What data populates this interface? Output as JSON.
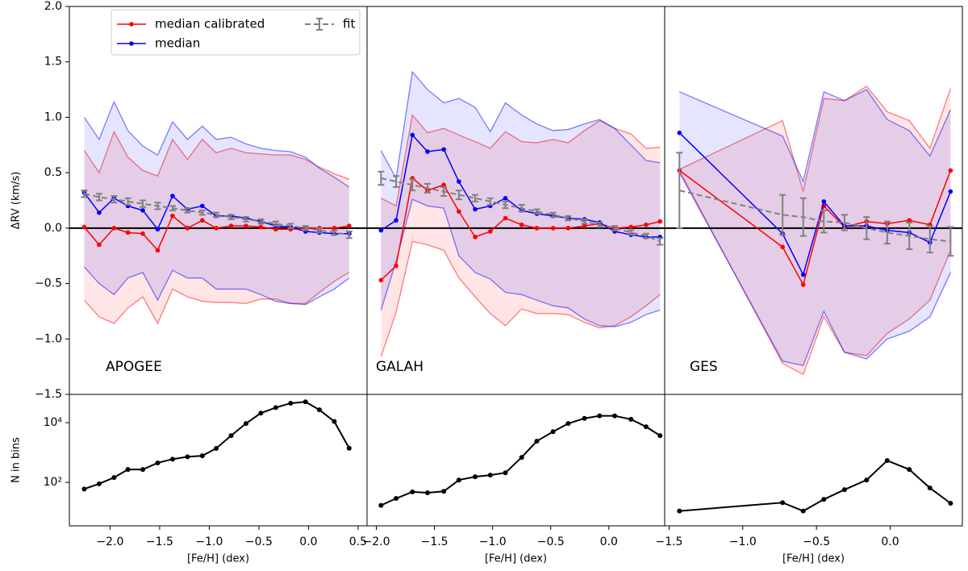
{
  "chart_data": [
    {
      "type": "line",
      "label": "APOGEE",
      "ylabel": "ΔRV (km/s)",
      "legend_loc": "upper left",
      "hline": 0,
      "xlim": [
        -2.41,
        0.59
      ],
      "xticks": [
        {
          "value": -2.0,
          "label": "−2.0"
        },
        {
          "value": -1.5,
          "label": "−1.5"
        },
        {
          "value": -1.0,
          "label": "−1.0"
        },
        {
          "value": -0.5,
          "label": "−0.5"
        },
        {
          "value": 0.0,
          "label": "0.0"
        },
        {
          "value": 0.5,
          "label": "0.5"
        }
      ],
      "ylim": [
        -1.5,
        2.0
      ],
      "yticks": [
        {
          "value": -1.5,
          "label": "−1.5"
        },
        {
          "value": -1.0,
          "label": "−1.0"
        },
        {
          "value": -0.5,
          "label": "−0.5"
        },
        {
          "value": 0.0,
          "label": "0.0"
        },
        {
          "value": 0.5,
          "label": "0.5"
        },
        {
          "value": 1.0,
          "label": "1.0"
        },
        {
          "value": 1.5,
          "label": "1.5"
        },
        {
          "value": 2.0,
          "label": "2.0"
        }
      ],
      "x": [
        -2.26,
        -2.11,
        -1.96,
        -1.82,
        -1.67,
        -1.52,
        -1.37,
        -1.22,
        -1.07,
        -0.93,
        -0.78,
        -0.63,
        -0.48,
        -0.33,
        -0.18,
        -0.03,
        0.11,
        0.26,
        0.41
      ],
      "series": [
        {
          "name": "median calibrated",
          "color": "#ff0000",
          "values": [
            0.01,
            -0.15,
            0.0,
            -0.04,
            -0.05,
            -0.2,
            0.11,
            0.0,
            0.07,
            0.0,
            0.02,
            0.02,
            0.01,
            -0.01,
            -0.01,
            0.0,
            0.0,
            0.0,
            0.02
          ],
          "band_high": [
            0.7,
            0.5,
            0.87,
            0.64,
            0.52,
            0.47,
            0.8,
            0.62,
            0.8,
            0.68,
            0.72,
            0.68,
            0.67,
            0.66,
            0.66,
            0.62,
            0.55,
            0.49,
            0.44
          ],
          "band_low": [
            -0.65,
            -0.8,
            -0.86,
            -0.72,
            -0.62,
            -0.86,
            -0.55,
            -0.62,
            -0.66,
            -0.67,
            -0.67,
            -0.68,
            -0.64,
            -0.64,
            -0.68,
            -0.68,
            -0.58,
            -0.48,
            -0.4
          ]
        },
        {
          "name": "median",
          "color": "#0000ff",
          "values": [
            0.32,
            0.14,
            0.27,
            0.2,
            0.16,
            -0.01,
            0.29,
            0.17,
            0.2,
            0.11,
            0.11,
            0.09,
            0.06,
            0.02,
            0.01,
            -0.03,
            -0.04,
            -0.05,
            -0.05
          ],
          "band_high": [
            1.0,
            0.8,
            1.14,
            0.88,
            0.74,
            0.66,
            0.96,
            0.8,
            0.92,
            0.8,
            0.82,
            0.76,
            0.72,
            0.7,
            0.69,
            0.64,
            0.54,
            0.46,
            0.37
          ],
          "band_low": [
            -0.35,
            -0.5,
            -0.6,
            -0.45,
            -0.4,
            -0.65,
            -0.38,
            -0.45,
            -0.45,
            -0.55,
            -0.55,
            -0.55,
            -0.6,
            -0.66,
            -0.68,
            -0.69,
            -0.62,
            -0.55,
            -0.45
          ]
        },
        {
          "name": "fit",
          "color": "#808080",
          "values": [
            0.31,
            0.28,
            0.26,
            0.24,
            0.22,
            0.2,
            0.18,
            0.16,
            0.14,
            0.12,
            0.1,
            0.08,
            0.06,
            0.04,
            0.02,
            0.0,
            -0.02,
            -0.04,
            -0.06
          ],
          "errors": [
            0.03,
            0.03,
            0.03,
            0.03,
            0.03,
            0.03,
            0.02,
            0.02,
            0.02,
            0.02,
            0.02,
            0.02,
            0.02,
            0.02,
            0.02,
            0.02,
            0.02,
            0.02,
            0.03
          ]
        }
      ]
    },
    {
      "type": "line",
      "label": "GALAH",
      "hline": 0,
      "xlim": [
        -2.08,
        0.48
      ],
      "xticks": [
        {
          "value": -2.0,
          "label": "−2.0"
        },
        {
          "value": -1.5,
          "label": "−1.5"
        },
        {
          "value": -1.0,
          "label": "−1.0"
        },
        {
          "value": -0.5,
          "label": "−0.5"
        },
        {
          "value": 0.0,
          "label": "0.0"
        }
      ],
      "ylim": [
        -1.5,
        2.0
      ],
      "x": [
        -1.96,
        -1.83,
        -1.69,
        -1.56,
        -1.42,
        -1.29,
        -1.15,
        -1.02,
        -0.89,
        -0.75,
        -0.62,
        -0.48,
        -0.35,
        -0.21,
        -0.08,
        0.05,
        0.19,
        0.32,
        0.44
      ],
      "series": [
        {
          "color": "#ff0000",
          "values": [
            -0.47,
            -0.34,
            0.45,
            0.34,
            0.39,
            0.15,
            -0.08,
            -0.03,
            0.09,
            0.03,
            0.0,
            0.0,
            0.0,
            0.02,
            0.04,
            0.0,
            0.01,
            0.03,
            0.06
          ],
          "band_high": [
            0.27,
            0.2,
            1.02,
            0.86,
            0.9,
            0.84,
            0.78,
            0.72,
            0.87,
            0.78,
            0.77,
            0.8,
            0.77,
            0.88,
            0.97,
            0.9,
            0.85,
            0.72,
            0.73
          ],
          "band_low": [
            -1.16,
            -0.76,
            -0.12,
            -0.15,
            -0.2,
            -0.45,
            -0.62,
            -0.77,
            -0.88,
            -0.73,
            -0.77,
            -0.77,
            -0.78,
            -0.85,
            -0.9,
            -0.88,
            -0.8,
            -0.7,
            -0.6
          ]
        },
        {
          "color": "#0000ff",
          "values": [
            -0.02,
            0.07,
            0.84,
            0.69,
            0.71,
            0.42,
            0.17,
            0.2,
            0.27,
            0.16,
            0.13,
            0.11,
            0.09,
            0.08,
            0.05,
            -0.03,
            -0.06,
            -0.08,
            -0.08
          ],
          "band_high": [
            0.7,
            0.45,
            1.41,
            1.25,
            1.13,
            1.17,
            1.09,
            0.87,
            1.13,
            1.02,
            0.94,
            0.88,
            0.89,
            0.94,
            0.98,
            0.9,
            0.75,
            0.61,
            0.59
          ],
          "band_low": [
            -0.74,
            -0.3,
            0.26,
            0.2,
            0.18,
            -0.25,
            -0.4,
            -0.46,
            -0.58,
            -0.6,
            -0.65,
            -0.7,
            -0.72,
            -0.82,
            -0.88,
            -0.89,
            -0.85,
            -0.78,
            -0.74
          ]
        },
        {
          "color": "#808080",
          "values": [
            0.45,
            0.42,
            0.39,
            0.36,
            0.33,
            0.3,
            0.27,
            0.24,
            0.21,
            0.18,
            0.15,
            0.12,
            0.09,
            0.06,
            0.03,
            0.0,
            -0.04,
            -0.07,
            -0.12
          ],
          "errors": [
            0.06,
            0.05,
            0.05,
            0.04,
            0.04,
            0.04,
            0.03,
            0.03,
            0.03,
            0.03,
            0.02,
            0.02,
            0.02,
            0.02,
            0.02,
            0.02,
            0.02,
            0.02,
            0.03
          ]
        }
      ]
    },
    {
      "type": "line",
      "label": "GES",
      "hline": 0,
      "xlim": [
        -1.53,
        0.49
      ],
      "xticks": [
        {
          "value": -1.5,
          "label": "−1.5"
        },
        {
          "value": -1.0,
          "label": "−1.0"
        },
        {
          "value": -0.5,
          "label": "−0.5"
        },
        {
          "value": 0.0,
          "label": "0.0"
        }
      ],
      "ylim": [
        -1.5,
        2.0
      ],
      "x": [
        -1.43,
        -0.73,
        -0.59,
        -0.45,
        -0.31,
        -0.16,
        -0.02,
        0.13,
        0.27,
        0.41
      ],
      "series": [
        {
          "color": "#ff0000",
          "values": [
            0.52,
            -0.17,
            -0.51,
            0.2,
            0.01,
            0.06,
            0.04,
            0.07,
            0.03,
            0.52
          ],
          "band_high": [
            0.53,
            0.97,
            0.33,
            1.17,
            1.15,
            1.28,
            1.05,
            0.97,
            0.72,
            1.26
          ],
          "band_low": [
            0.52,
            -1.22,
            -1.32,
            -0.8,
            -1.12,
            -1.15,
            -0.95,
            -0.82,
            -0.65,
            -0.2
          ]
        },
        {
          "color": "#0000ff",
          "values": [
            0.86,
            -0.05,
            -0.42,
            0.24,
            0.02,
            0.02,
            -0.02,
            -0.04,
            -0.13,
            0.33
          ],
          "band_high": [
            1.23,
            0.83,
            0.42,
            1.23,
            1.15,
            1.25,
            0.98,
            0.88,
            0.65,
            1.07
          ],
          "band_low": [
            0.5,
            -1.2,
            -1.24,
            -0.75,
            -1.12,
            -1.18,
            -1.0,
            -0.93,
            -0.8,
            -0.4
          ]
        },
        {
          "color": "#808080",
          "values": [
            0.34,
            0.12,
            0.1,
            0.06,
            0.05,
            0.0,
            -0.04,
            -0.07,
            -0.1,
            -0.12
          ],
          "errors": [
            0.34,
            0.18,
            0.17,
            0.1,
            0.07,
            0.1,
            0.1,
            0.12,
            0.12,
            0.13
          ]
        }
      ]
    },
    {
      "type": "line",
      "log_y": true,
      "ylabel": "N in bins",
      "xlabel": "[Fe/H] (dex)",
      "color": "#000000",
      "ylim": [
        3.5,
        89000
      ],
      "yticks": [
        {
          "value": 100,
          "label": "10²"
        },
        {
          "value": 10000,
          "label": "10⁴"
        }
      ],
      "values": [
        60,
        90,
        145,
        270,
        270,
        450,
        600,
        720,
        780,
        1380,
        3700,
        9400,
        21000,
        32000,
        45000,
        50000,
        27000,
        11000,
        1400
      ]
    },
    {
      "type": "line",
      "log_y": true,
      "xlabel": "[Fe/H] (dex)",
      "color": "#000000",
      "ylim": [
        3.5,
        89000
      ],
      "values": [
        17,
        29,
        48,
        45,
        50,
        120,
        155,
        175,
        210,
        690,
        2400,
        5000,
        9400,
        14000,
        17000,
        17000,
        13000,
        7300,
        3700
      ]
    },
    {
      "type": "line",
      "log_y": true,
      "xlabel": "[Fe/H] (dex)",
      "color": "#000000",
      "ylim": [
        3.5,
        89000
      ],
      "values": [
        11,
        21,
        11,
        27,
        57,
        120,
        540,
        270,
        65,
        20
      ]
    }
  ]
}
